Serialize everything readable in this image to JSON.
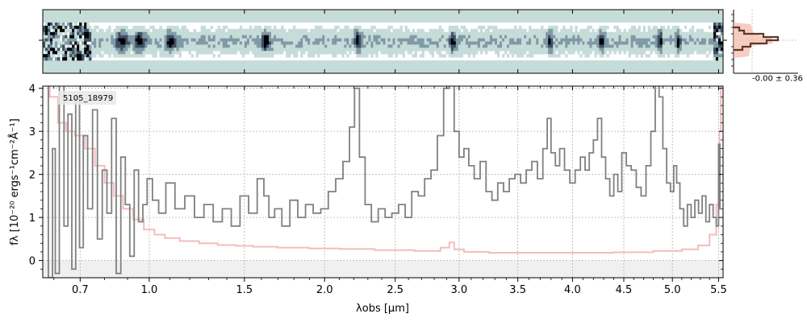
{
  "chart_data": [
    {
      "type": "heatmap",
      "panel": "2d-spectrum",
      "colormap": [
        "#ffffff",
        "#c6dcd9",
        "#7f9aa6",
        "#3e5066",
        "#000000"
      ],
      "background_color": "#c6dcd9",
      "bright_features": [
        0.87,
        0.95,
        1.1,
        1.62,
        2.22,
        2.94,
        3.78,
        4.27,
        4.86,
        5.05
      ],
      "xlim": [
        0.56,
        5.55
      ]
    },
    {
      "type": "line",
      "panel": "1d-spectrum",
      "object_id": "5105_18979",
      "xlabel": "λobs [μm]",
      "ylabel": "fλ [10⁻²⁰ ergs⁻¹cm⁻²Å⁻¹]",
      "xscale": "sqrt",
      "xlim": [
        0.56,
        5.55
      ],
      "ylim": [
        -0.4,
        4.05
      ],
      "x_tick_labels": [
        "0.7",
        "1.0",
        "1.5",
        "2.0",
        "2.5",
        "3.0",
        "3.5",
        "4.0",
        "4.5",
        "5.0",
        "5.5"
      ],
      "x_ticks": [
        0.7,
        1.0,
        1.5,
        2.0,
        2.5,
        3.0,
        3.5,
        4.0,
        4.5,
        5.0,
        5.5
      ],
      "y_tick_labels": [
        "0",
        "1",
        "2",
        "3",
        "4"
      ],
      "y_ticks": [
        0,
        1,
        2,
        3,
        4
      ],
      "grid": true,
      "colors": {
        "flux": "#808080",
        "error": "#f4bcbc",
        "zero_band": "#f0f0f0"
      },
      "series": [
        {
          "role": "flux",
          "style": "step",
          "points": [
            [
              0.57,
              4.1
            ],
            [
              0.59,
              -0.4
            ],
            [
              0.6,
              2.6
            ],
            [
              0.61,
              -0.3
            ],
            [
              0.63,
              4.1
            ],
            [
              0.645,
              0.8
            ],
            [
              0.66,
              3.4
            ],
            [
              0.675,
              -0.2
            ],
            [
              0.69,
              3.8
            ],
            [
              0.705,
              0.3
            ],
            [
              0.72,
              2.9
            ],
            [
              0.74,
              1.2
            ],
            [
              0.76,
              3.5
            ],
            [
              0.78,
              0.5
            ],
            [
              0.8,
              2.1
            ],
            [
              0.82,
              1.1
            ],
            [
              0.84,
              3.3
            ],
            [
              0.86,
              -0.3
            ],
            [
              0.88,
              2.4
            ],
            [
              0.9,
              1.3
            ],
            [
              0.92,
              0.1
            ],
            [
              0.94,
              2.1
            ],
            [
              0.96,
              0.9
            ],
            [
              0.98,
              1.3
            ],
            [
              1.0,
              1.9
            ],
            [
              1.03,
              1.4
            ],
            [
              1.06,
              1.1
            ],
            [
              1.1,
              1.8
            ],
            [
              1.15,
              1.2
            ],
            [
              1.2,
              1.5
            ],
            [
              1.25,
              1.0
            ],
            [
              1.3,
              1.3
            ],
            [
              1.35,
              0.9
            ],
            [
              1.4,
              1.2
            ],
            [
              1.45,
              0.8
            ],
            [
              1.5,
              1.5
            ],
            [
              1.55,
              1.1
            ],
            [
              1.6,
              1.9
            ],
            [
              1.63,
              1.5
            ],
            [
              1.66,
              1.0
            ],
            [
              1.7,
              1.2
            ],
            [
              1.75,
              0.8
            ],
            [
              1.8,
              1.4
            ],
            [
              1.85,
              1.0
            ],
            [
              1.9,
              1.3
            ],
            [
              1.95,
              1.1
            ],
            [
              2.0,
              1.2
            ],
            [
              2.05,
              1.6
            ],
            [
              2.1,
              1.9
            ],
            [
              2.15,
              2.3
            ],
            [
              2.19,
              3.1
            ],
            [
              2.22,
              4.0
            ],
            [
              2.26,
              2.4
            ],
            [
              2.3,
              1.3
            ],
            [
              2.35,
              0.9
            ],
            [
              2.4,
              1.2
            ],
            [
              2.45,
              1.0
            ],
            [
              2.5,
              1.1
            ],
            [
              2.55,
              1.3
            ],
            [
              2.6,
              1.0
            ],
            [
              2.65,
              1.6
            ],
            [
              2.7,
              1.5
            ],
            [
              2.75,
              1.9
            ],
            [
              2.8,
              2.1
            ],
            [
              2.85,
              2.9
            ],
            [
              2.9,
              4.0
            ],
            [
              2.94,
              4.1
            ],
            [
              2.98,
              3.0
            ],
            [
              3.02,
              2.4
            ],
            [
              3.06,
              2.6
            ],
            [
              3.1,
              2.2
            ],
            [
              3.15,
              1.9
            ],
            [
              3.2,
              2.3
            ],
            [
              3.25,
              1.6
            ],
            [
              3.3,
              1.4
            ],
            [
              3.35,
              1.8
            ],
            [
              3.4,
              1.6
            ],
            [
              3.45,
              1.9
            ],
            [
              3.5,
              2.0
            ],
            [
              3.55,
              1.8
            ],
            [
              3.6,
              2.1
            ],
            [
              3.65,
              2.3
            ],
            [
              3.7,
              1.9
            ],
            [
              3.75,
              2.6
            ],
            [
              3.78,
              3.3
            ],
            [
              3.82,
              2.5
            ],
            [
              3.86,
              2.2
            ],
            [
              3.9,
              2.6
            ],
            [
              3.95,
              2.1
            ],
            [
              4.0,
              1.8
            ],
            [
              4.05,
              2.1
            ],
            [
              4.1,
              2.4
            ],
            [
              4.14,
              2.1
            ],
            [
              4.18,
              2.5
            ],
            [
              4.22,
              2.8
            ],
            [
              4.26,
              3.3
            ],
            [
              4.3,
              2.4
            ],
            [
              4.34,
              1.9
            ],
            [
              4.38,
              1.5
            ],
            [
              4.42,
              2.0
            ],
            [
              4.46,
              1.6
            ],
            [
              4.5,
              2.5
            ],
            [
              4.55,
              2.2
            ],
            [
              4.6,
              2.1
            ],
            [
              4.65,
              1.7
            ],
            [
              4.7,
              1.5
            ],
            [
              4.75,
              2.2
            ],
            [
              4.8,
              3.0
            ],
            [
              4.84,
              4.1
            ],
            [
              4.88,
              3.8
            ],
            [
              4.92,
              2.6
            ],
            [
              4.96,
              1.8
            ],
            [
              5.0,
              1.6
            ],
            [
              5.03,
              2.2
            ],
            [
              5.06,
              1.8
            ],
            [
              5.1,
              1.2
            ],
            [
              5.14,
              0.8
            ],
            [
              5.18,
              1.3
            ],
            [
              5.22,
              1.0
            ],
            [
              5.26,
              1.4
            ],
            [
              5.3,
              1.1
            ],
            [
              5.34,
              1.5
            ],
            [
              5.38,
              0.9
            ],
            [
              5.42,
              1.3
            ],
            [
              5.46,
              1.0
            ],
            [
              5.49,
              0.8
            ],
            [
              5.51,
              2.7
            ],
            [
              5.52,
              1.2
            ]
          ]
        },
        {
          "role": "error",
          "style": "step",
          "points": [
            [
              0.57,
              4.1
            ],
            [
              0.6,
              3.8
            ],
            [
              0.63,
              3.2
            ],
            [
              0.66,
              3.0
            ],
            [
              0.7,
              2.9
            ],
            [
              0.74,
              2.6
            ],
            [
              0.78,
              2.2
            ],
            [
              0.82,
              1.8
            ],
            [
              0.86,
              1.5
            ],
            [
              0.9,
              1.2
            ],
            [
              0.95,
              0.95
            ],
            [
              1.0,
              0.72
            ],
            [
              1.05,
              0.6
            ],
            [
              1.1,
              0.52
            ],
            [
              1.2,
              0.45
            ],
            [
              1.3,
              0.4
            ],
            [
              1.4,
              0.36
            ],
            [
              1.5,
              0.34
            ],
            [
              1.6,
              0.32
            ],
            [
              1.8,
              0.3
            ],
            [
              2.0,
              0.28
            ],
            [
              2.2,
              0.27
            ],
            [
              2.5,
              0.24
            ],
            [
              2.8,
              0.22
            ],
            [
              2.9,
              0.3
            ],
            [
              2.94,
              0.42
            ],
            [
              2.98,
              0.26
            ],
            [
              3.1,
              0.2
            ],
            [
              3.4,
              0.18
            ],
            [
              3.8,
              0.18
            ],
            [
              4.2,
              0.18
            ],
            [
              4.6,
              0.19
            ],
            [
              5.0,
              0.22
            ],
            [
              5.2,
              0.26
            ],
            [
              5.35,
              0.35
            ],
            [
              5.45,
              0.6
            ],
            [
              5.5,
              1.3
            ],
            [
              5.52,
              3.0
            ],
            [
              5.53,
              4.1
            ]
          ]
        }
      ]
    },
    {
      "type": "histogram",
      "panel": "cross-dispersion-profile",
      "label": "-0.00 ± 0.36",
      "colors": {
        "profile": "#5a3a28",
        "fill": "#f4b6a6"
      }
    }
  ]
}
